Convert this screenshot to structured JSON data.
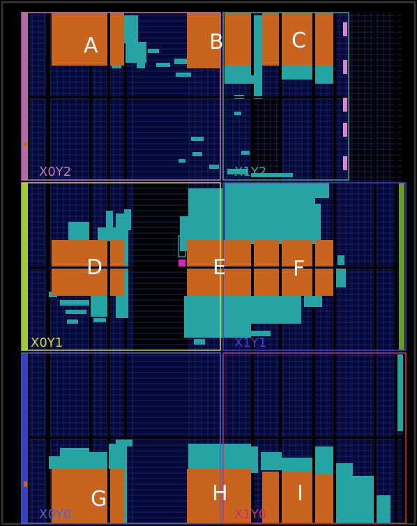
{
  "colors": {
    "background": "#000000",
    "fabric": "#050a3a",
    "grid_line": "#1b2163",
    "logic": "#c8641e",
    "routing": "#26a3a3",
    "outer_border": "#333333",
    "label": "#ffffff"
  },
  "regions": [
    {
      "name": "X0Y2",
      "color": "#c678b8"
    },
    {
      "name": "X1Y2",
      "color": "#3aa88c"
    },
    {
      "name": "X0Y1",
      "color": "#d6d634"
    },
    {
      "name": "X1Y1",
      "color": "#4a3bd4"
    },
    {
      "name": "X0Y0",
      "color": "#4d63d6"
    },
    {
      "name": "X1Y0",
      "color": "#d02c6c"
    }
  ],
  "labels": [
    "A",
    "B",
    "C",
    "D",
    "E",
    "F",
    "G",
    "H",
    "I"
  ]
}
